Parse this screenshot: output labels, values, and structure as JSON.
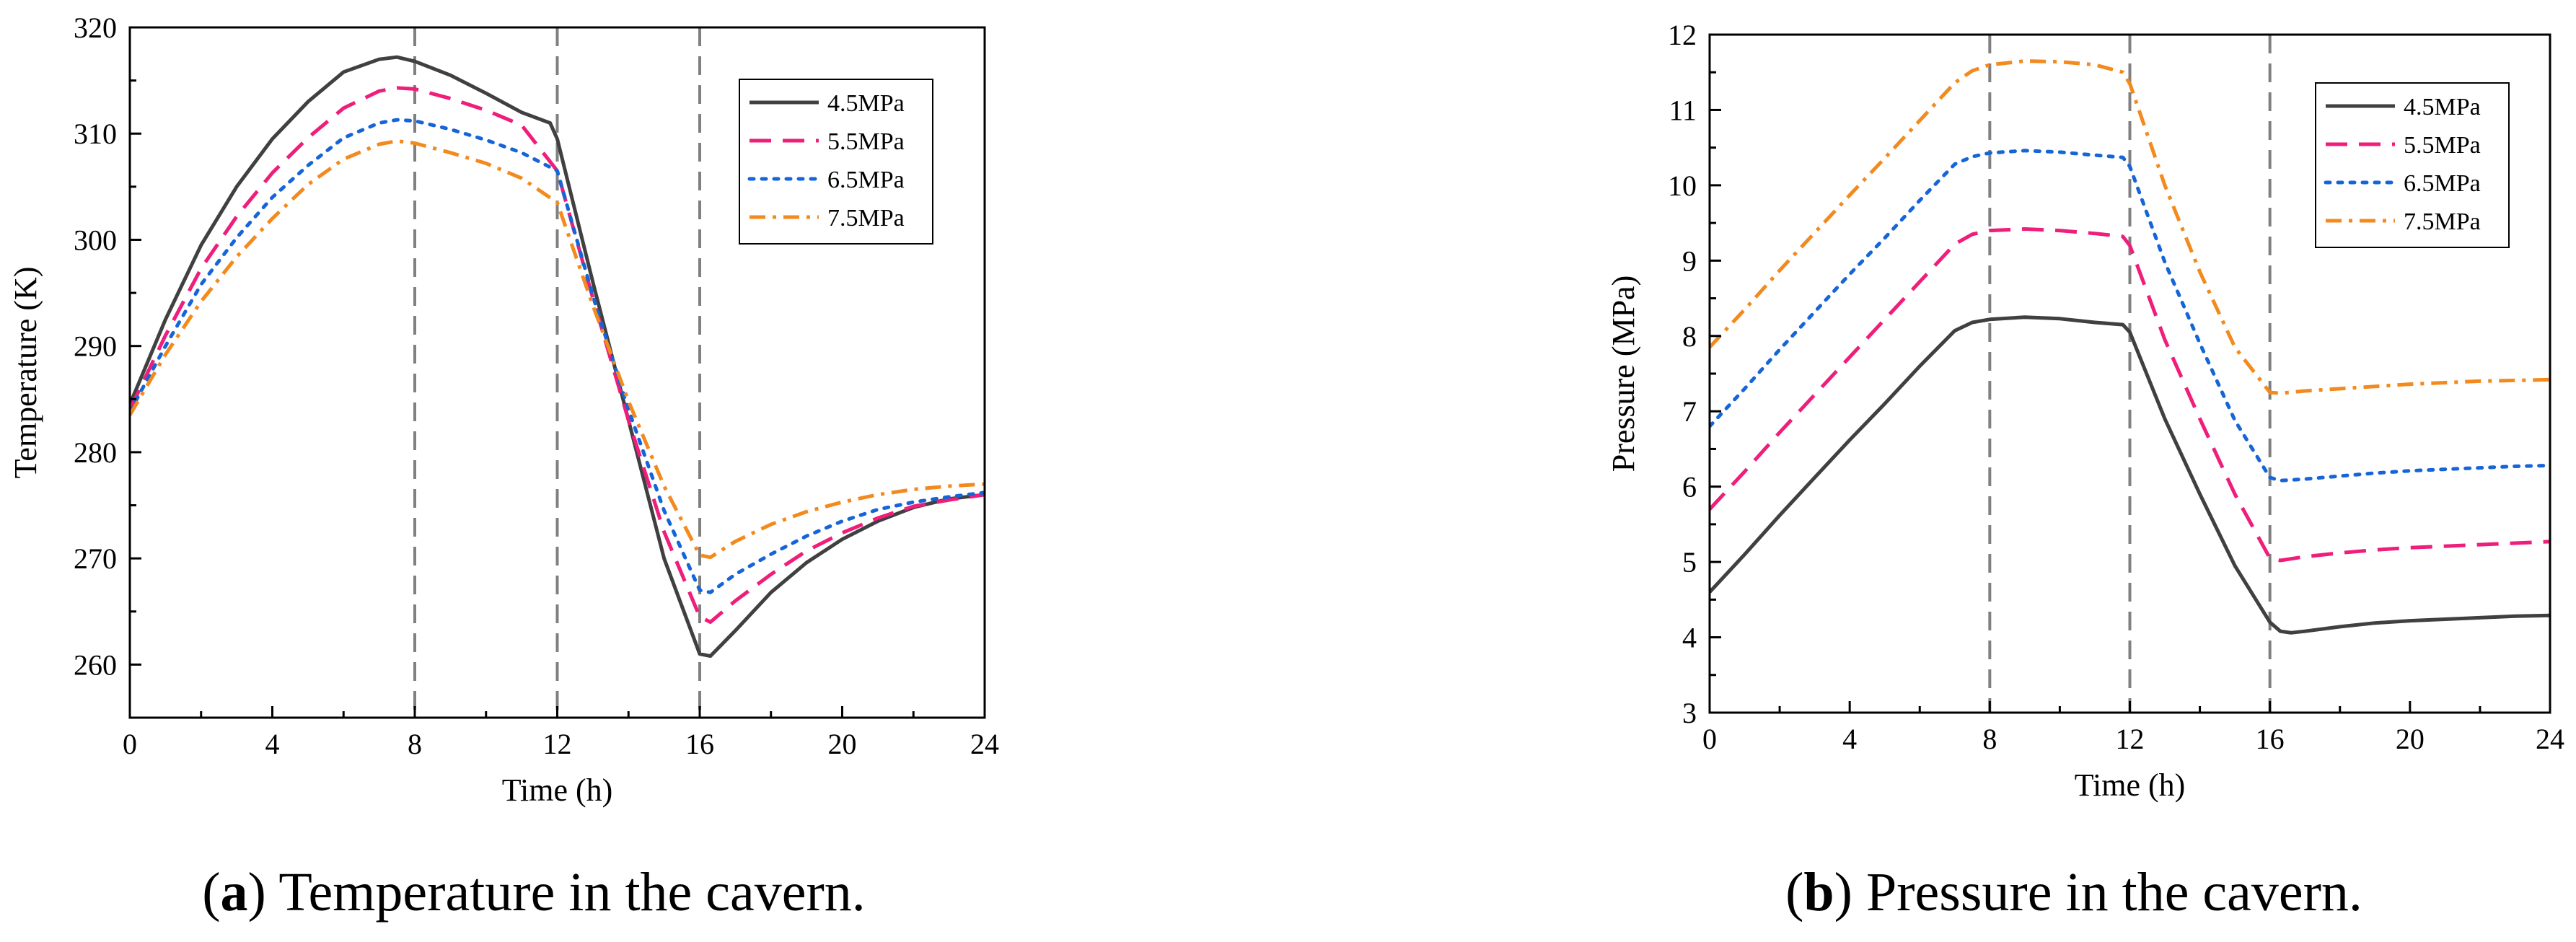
{
  "chart_data": [
    {
      "id": "a",
      "type": "line",
      "caption": {
        "open": "(",
        "letter": "a",
        "text": ") Temperature in the cavern."
      },
      "xlabel": "Time (h)",
      "ylabel": "Temperature (K)",
      "xlim": [
        0,
        24
      ],
      "ylim": [
        255,
        320
      ],
      "xticks": [
        0,
        4,
        8,
        12,
        16,
        20,
        24
      ],
      "yticks": [
        260,
        270,
        280,
        290,
        300,
        310,
        320
      ],
      "vlines": [
        8,
        12,
        16
      ],
      "legend_position": "top-right",
      "series": [
        {
          "name": "4.5MPa",
          "color": "#404040",
          "dash": "solid",
          "x": [
            0,
            1,
            2,
            3,
            4,
            5,
            6,
            7,
            7.5,
            8,
            9,
            10,
            11,
            11.8,
            12,
            13,
            14,
            15,
            16,
            16.3,
            17,
            18,
            19,
            20,
            21,
            22,
            23,
            24
          ],
          "y": [
            284.5,
            292.5,
            299.5,
            305,
            309.5,
            313,
            315.8,
            317,
            317.2,
            316.8,
            315.5,
            313.8,
            312,
            311,
            309.5,
            296,
            283,
            270,
            261,
            260.8,
            263.2,
            266.8,
            269.6,
            271.8,
            273.5,
            274.8,
            275.6,
            276
          ]
        },
        {
          "name": "5.5MPa",
          "color": "#EE1E7A",
          "dash": "dashed",
          "x": [
            0,
            1,
            2,
            3,
            4,
            5,
            6,
            7,
            7.5,
            8,
            9,
            10,
            11,
            12,
            13,
            14,
            15,
            16,
            16.3,
            17,
            18,
            19,
            20,
            21,
            22,
            23,
            24
          ],
          "y": [
            284,
            291,
            297.3,
            302.2,
            306.3,
            309.6,
            312.4,
            314,
            314.3,
            314.2,
            313.3,
            312.2,
            310.8,
            306.5,
            294.5,
            283,
            272.5,
            264.5,
            264,
            266,
            268.5,
            270.7,
            272.4,
            273.8,
            274.9,
            275.5,
            276
          ]
        },
        {
          "name": "6.5MPa",
          "color": "#1565D8",
          "dash": "dotted",
          "x": [
            0,
            1,
            2,
            3,
            4,
            5,
            6,
            7,
            7.5,
            8,
            9,
            10,
            11,
            12,
            13,
            14,
            15,
            16,
            16.3,
            17,
            18,
            19,
            20,
            21,
            22,
            23,
            24
          ],
          "y": [
            283.8,
            290,
            295.8,
            300.2,
            304,
            307,
            309.6,
            311,
            311.3,
            311.2,
            310.4,
            309.4,
            308.2,
            306.5,
            294.7,
            284,
            274.5,
            267,
            266.8,
            268.5,
            270.4,
            272.1,
            273.5,
            274.6,
            275.3,
            275.8,
            276.2
          ]
        },
        {
          "name": "7.5MPa",
          "color": "#F28A1E",
          "dash": "dashdot",
          "x": [
            0,
            1,
            2,
            3,
            4,
            5,
            6,
            7,
            7.5,
            8,
            9,
            10,
            11,
            12,
            13,
            14,
            15,
            16,
            16.3,
            17,
            18,
            19,
            20,
            21,
            22,
            23,
            24
          ],
          "y": [
            283.5,
            289.2,
            294.2,
            298.4,
            302,
            305.2,
            307.6,
            309,
            309.3,
            309.1,
            308.2,
            307.2,
            305.8,
            303.5,
            293.8,
            284.8,
            276.8,
            270.3,
            270.1,
            271.6,
            273.2,
            274.4,
            275.3,
            276,
            276.5,
            276.8,
            277
          ]
        }
      ]
    },
    {
      "id": "b",
      "type": "line",
      "caption": {
        "open": "(",
        "letter": "b",
        "text": ") Pressure in the cavern."
      },
      "xlabel": "Time (h)",
      "ylabel": "Pressure (MPa)",
      "xlim": [
        0,
        24
      ],
      "ylim": [
        3,
        12
      ],
      "xticks": [
        0,
        4,
        8,
        12,
        16,
        20,
        24
      ],
      "yticks": [
        3,
        4,
        5,
        6,
        7,
        8,
        9,
        10,
        11,
        12
      ],
      "vlines": [
        8,
        12,
        16
      ],
      "legend_position": "top-right",
      "series": [
        {
          "name": "4.5MPa",
          "color": "#404040",
          "dash": "solid",
          "x": [
            0,
            1,
            2,
            3,
            4,
            5,
            6,
            7,
            7.5,
            8,
            9,
            10,
            11,
            11.8,
            12,
            13,
            14,
            15,
            16,
            16.3,
            16.6,
            17,
            18,
            19,
            20,
            21,
            22,
            23,
            24
          ],
          "y": [
            4.6,
            5.1,
            5.62,
            6.12,
            6.62,
            7.1,
            7.6,
            8.07,
            8.18,
            8.22,
            8.25,
            8.23,
            8.18,
            8.15,
            8.05,
            6.9,
            5.9,
            4.95,
            4.2,
            4.08,
            4.06,
            4.08,
            4.14,
            4.19,
            4.22,
            4.24,
            4.26,
            4.28,
            4.29
          ]
        },
        {
          "name": "5.5MPa",
          "color": "#EE1E7A",
          "dash": "dashed",
          "x": [
            0,
            1,
            2,
            3,
            4,
            5,
            6,
            7,
            7.5,
            8,
            9,
            10,
            11,
            11.8,
            12,
            13,
            14,
            15,
            16,
            16.3,
            17,
            18,
            19,
            20,
            21,
            22,
            23,
            24
          ],
          "y": [
            5.7,
            6.2,
            6.72,
            7.22,
            7.72,
            8.22,
            8.72,
            9.22,
            9.35,
            9.4,
            9.42,
            9.4,
            9.36,
            9.32,
            9.2,
            7.95,
            6.9,
            5.9,
            5.05,
            5.02,
            5.07,
            5.12,
            5.16,
            5.19,
            5.21,
            5.23,
            5.25,
            5.27
          ]
        },
        {
          "name": "6.5MPa",
          "color": "#1565D8",
          "dash": "dotted",
          "x": [
            0,
            1,
            2,
            3,
            4,
            5,
            6,
            7,
            7.5,
            8,
            9,
            10,
            11,
            11.8,
            12,
            13,
            14,
            15,
            16,
            16.3,
            17,
            18,
            19,
            20,
            21,
            22,
            23,
            24
          ],
          "y": [
            6.8,
            7.3,
            7.82,
            8.32,
            8.82,
            9.3,
            9.8,
            10.28,
            10.38,
            10.43,
            10.46,
            10.44,
            10.4,
            10.37,
            10.25,
            8.98,
            7.9,
            6.88,
            6.12,
            6.08,
            6.1,
            6.14,
            6.18,
            6.21,
            6.23,
            6.25,
            6.27,
            6.28
          ]
        },
        {
          "name": "7.5MPa",
          "color": "#F28A1E",
          "dash": "dashdot",
          "x": [
            0,
            1,
            2,
            3,
            4,
            5,
            6,
            7,
            7.5,
            8,
            9,
            10,
            11,
            11.8,
            12,
            13,
            14,
            15,
            16,
            16.3,
            17,
            18,
            19,
            20,
            21,
            22,
            23,
            24
          ],
          "y": [
            7.85,
            8.35,
            8.87,
            9.37,
            9.87,
            10.36,
            10.86,
            11.36,
            11.52,
            11.6,
            11.65,
            11.64,
            11.6,
            11.5,
            11.35,
            10.0,
            8.85,
            7.85,
            7.25,
            7.24,
            7.27,
            7.3,
            7.33,
            7.36,
            7.38,
            7.4,
            7.41,
            7.42
          ]
        }
      ]
    }
  ]
}
